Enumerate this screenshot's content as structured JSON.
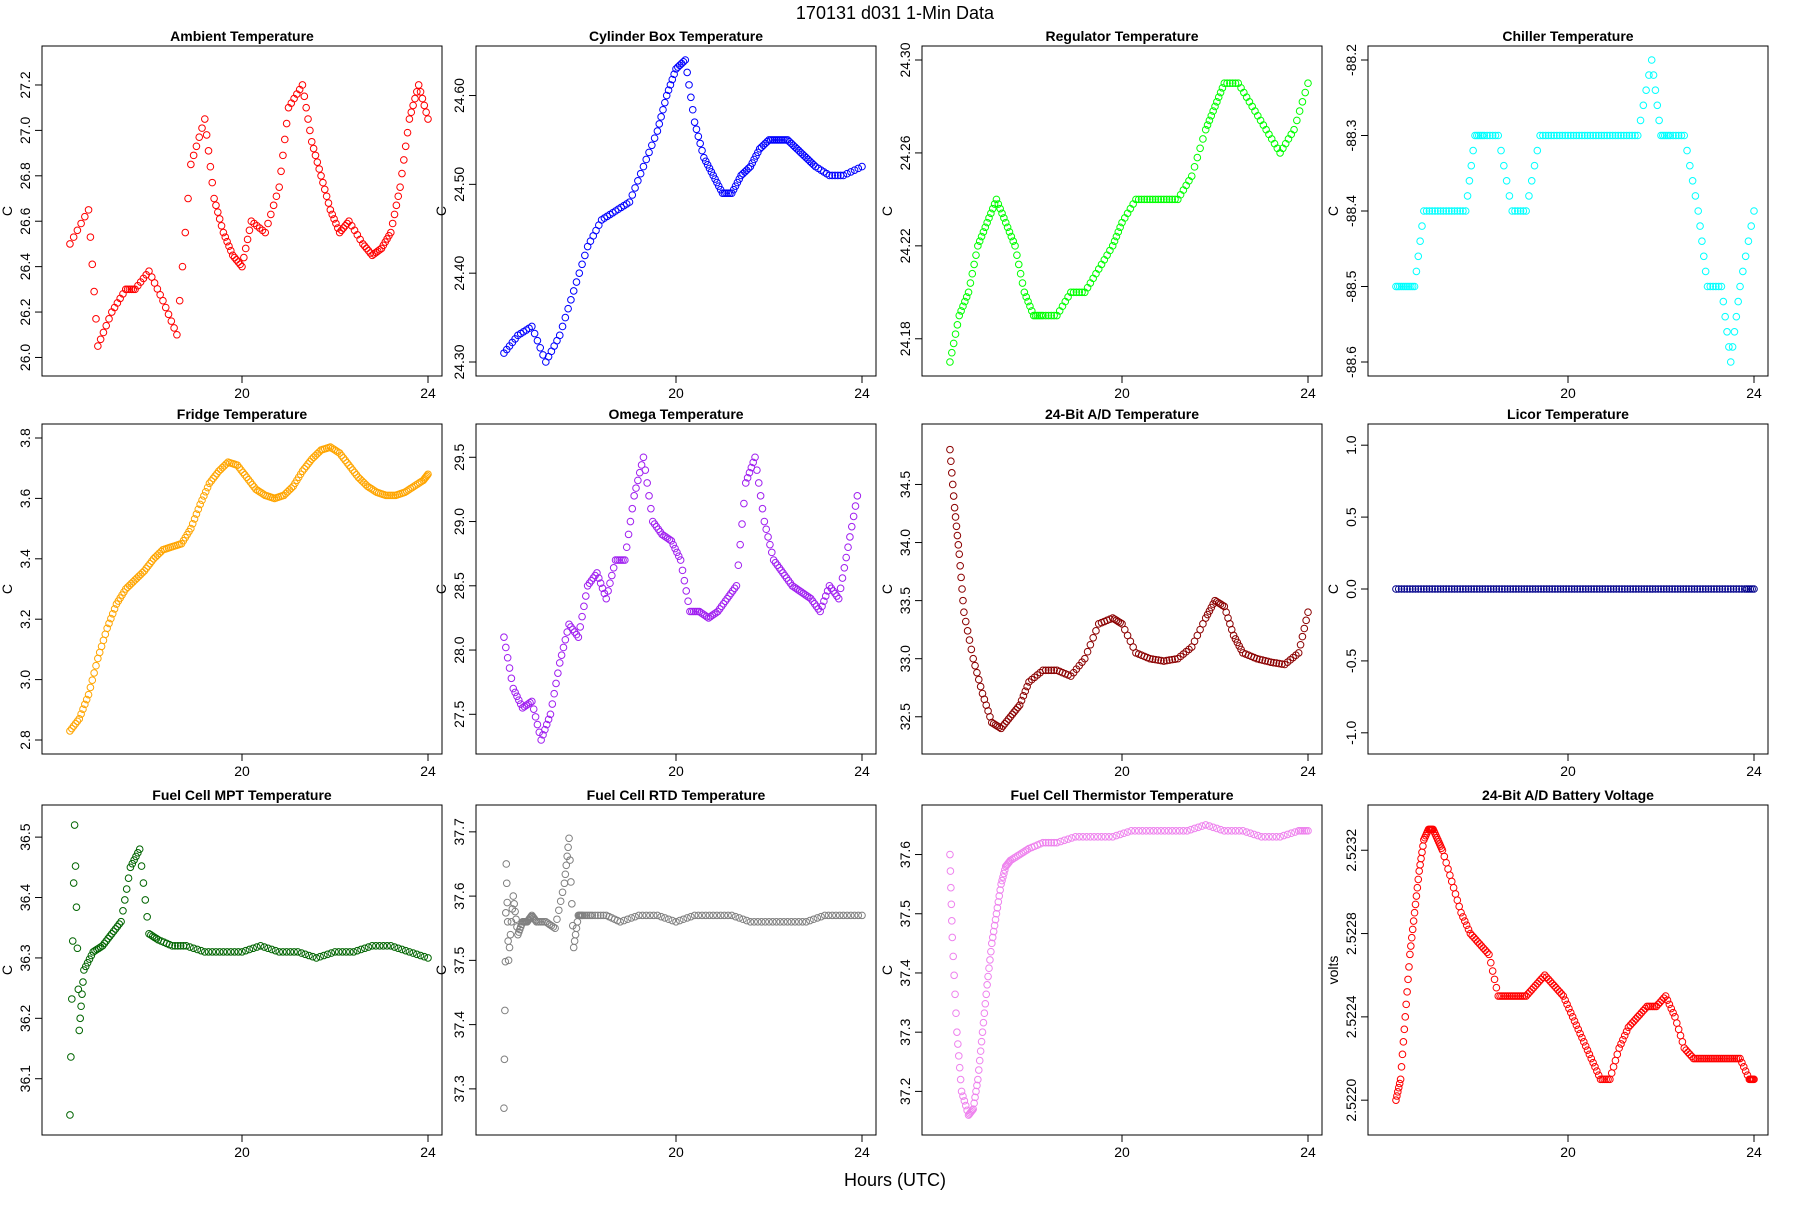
{
  "figure": {
    "title": "170131    d031    1-Min Data",
    "xlabel": "Hours (UTC)"
  },
  "chart_data": [
    {
      "type": "scatter",
      "title": "Ambient Temperature",
      "ylabel": "C",
      "color": "#ff0000",
      "xlim": [
        16,
        24
      ],
      "ylim": [
        25.98,
        27.31
      ],
      "xticks": [
        20,
        24
      ],
      "yticks": [
        26.0,
        26.2,
        26.4,
        26.6,
        26.8,
        27.0,
        27.2
      ],
      "ytick_labels": [
        "26.0",
        "26.2",
        "26.4",
        "26.6",
        "26.8",
        "27.0",
        "27.2"
      ],
      "x": [
        16.3,
        16.7,
        16.9,
        17.2,
        17.5,
        17.7,
        18.0,
        18.3,
        18.6,
        18.9,
        19.2,
        19.4,
        19.6,
        19.8,
        20.0,
        20.2,
        20.5,
        20.8,
        21.0,
        21.3,
        21.5,
        21.7,
        21.9,
        22.1,
        22.3,
        22.6,
        22.8,
        23.0,
        23.2,
        23.4,
        23.6,
        23.8,
        24.0
      ],
      "y": [
        26.5,
        26.65,
        26.05,
        26.2,
        26.3,
        26.3,
        26.38,
        26.25,
        26.1,
        26.85,
        27.05,
        26.7,
        26.55,
        26.45,
        26.4,
        26.6,
        26.55,
        26.75,
        27.1,
        27.2,
        26.95,
        26.8,
        26.65,
        26.55,
        26.6,
        26.5,
        26.45,
        26.48,
        26.55,
        26.75,
        27.05,
        27.2,
        27.05
      ]
    },
    {
      "type": "scatter",
      "title": "Cylinder Box Temperature",
      "ylabel": "C",
      "color": "#0000ff",
      "xlim": [
        16,
        24
      ],
      "ylim": [
        24.3,
        24.64
      ],
      "xticks": [
        20,
        24
      ],
      "yticks": [
        24.3,
        24.4,
        24.5,
        24.6
      ],
      "ytick_labels": [
        "24.30",
        "24.40",
        "24.50",
        "24.60"
      ],
      "x": [
        16.3,
        16.6,
        16.9,
        17.2,
        17.5,
        17.8,
        18.1,
        18.4,
        18.7,
        19.0,
        19.3,
        19.6,
        19.8,
        20.0,
        20.2,
        20.4,
        20.6,
        20.8,
        21.0,
        21.2,
        21.4,
        21.6,
        21.8,
        22.0,
        22.2,
        22.4,
        22.6,
        22.8,
        23.0,
        23.3,
        23.6,
        24.0
      ],
      "y": [
        24.31,
        24.33,
        24.34,
        24.3,
        24.33,
        24.38,
        24.43,
        24.46,
        24.47,
        24.48,
        24.52,
        24.56,
        24.6,
        24.63,
        24.64,
        24.57,
        24.53,
        24.51,
        24.49,
        24.49,
        24.51,
        24.52,
        24.54,
        24.55,
        24.55,
        24.55,
        24.54,
        24.53,
        24.52,
        24.51,
        24.51,
        24.52
      ]
    },
    {
      "type": "scatter",
      "title": "Regulator Temperature",
      "ylabel": "C",
      "color": "#00ff00",
      "xlim": [
        16,
        24
      ],
      "ylim": [
        24.17,
        24.3
      ],
      "xticks": [
        20,
        24
      ],
      "yticks": [
        24.18,
        24.22,
        24.26,
        24.3
      ],
      "ytick_labels": [
        "24.18",
        "24.22",
        "24.26",
        "24.30"
      ],
      "x": [
        16.3,
        16.5,
        16.7,
        16.9,
        17.1,
        17.3,
        17.5,
        17.7,
        17.9,
        18.1,
        18.3,
        18.6,
        18.9,
        19.2,
        19.5,
        19.8,
        20.0,
        20.3,
        20.6,
        20.9,
        21.2,
        21.5,
        21.8,
        22.0,
        22.2,
        22.5,
        22.8,
        23.1,
        23.4,
        23.7,
        24.0
      ],
      "y": [
        24.17,
        24.19,
        24.2,
        24.22,
        24.23,
        24.24,
        24.23,
        24.22,
        24.2,
        24.19,
        24.19,
        24.19,
        24.2,
        24.2,
        24.21,
        24.22,
        24.23,
        24.24,
        24.24,
        24.24,
        24.24,
        24.25,
        24.27,
        24.28,
        24.29,
        24.29,
        24.28,
        24.27,
        24.26,
        24.27,
        24.29
      ]
    },
    {
      "type": "scatter",
      "title": "Chiller Temperature",
      "ylabel": "C",
      "color": "#00ffff",
      "xlim": [
        16,
        24
      ],
      "ylim": [
        -88.6,
        -88.2
      ],
      "xticks": [
        20,
        24
      ],
      "yticks": [
        -88.6,
        -88.5,
        -88.4,
        -88.3,
        -88.2
      ],
      "ytick_labels": [
        "-88.6",
        "-88.5",
        "-88.4",
        "-88.3",
        "-88.2"
      ],
      "x": [
        16.3,
        16.5,
        16.7,
        16.9,
        17.2,
        17.5,
        17.8,
        18.0,
        18.2,
        18.5,
        18.8,
        19.1,
        19.4,
        19.7,
        20.0,
        20.3,
        20.6,
        20.9,
        21.2,
        21.5,
        21.8,
        22.0,
        22.2,
        22.5,
        22.8,
        23.0,
        23.3,
        23.5,
        23.7,
        24.0
      ],
      "y": [
        -88.5,
        -88.5,
        -88.5,
        -88.4,
        -88.4,
        -88.4,
        -88.4,
        -88.3,
        -88.3,
        -88.3,
        -88.4,
        -88.4,
        -88.3,
        -88.3,
        -88.3,
        -88.3,
        -88.3,
        -88.3,
        -88.3,
        -88.3,
        -88.2,
        -88.3,
        -88.3,
        -88.3,
        -88.4,
        -88.5,
        -88.5,
        -88.6,
        -88.5,
        -88.4
      ]
    },
    {
      "type": "scatter",
      "title": "Fridge Temperature",
      "ylabel": "C",
      "color": "#ffa500",
      "xlim": [
        16,
        24
      ],
      "ylim": [
        2.8,
        3.8
      ],
      "xticks": [
        20,
        24
      ],
      "yticks": [
        2.8,
        3.0,
        3.2,
        3.4,
        3.6,
        3.8
      ],
      "ytick_labels": [
        "2.8",
        "3.0",
        "3.2",
        "3.4",
        "3.6",
        "3.8"
      ],
      "x": [
        16.3,
        16.5,
        16.7,
        16.9,
        17.1,
        17.3,
        17.5,
        17.7,
        17.9,
        18.1,
        18.3,
        18.5,
        18.7,
        18.9,
        19.1,
        19.3,
        19.5,
        19.7,
        19.9,
        20.1,
        20.3,
        20.5,
        20.7,
        20.9,
        21.1,
        21.3,
        21.5,
        21.7,
        21.9,
        22.1,
        22.3,
        22.5,
        22.7,
        22.9,
        23.1,
        23.3,
        23.5,
        23.7,
        23.9,
        24.0
      ],
      "y": [
        2.83,
        2.87,
        2.95,
        3.07,
        3.17,
        3.25,
        3.3,
        3.33,
        3.36,
        3.4,
        3.43,
        3.44,
        3.45,
        3.5,
        3.58,
        3.65,
        3.69,
        3.72,
        3.71,
        3.67,
        3.63,
        3.61,
        3.6,
        3.61,
        3.64,
        3.69,
        3.73,
        3.76,
        3.77,
        3.75,
        3.71,
        3.67,
        3.64,
        3.62,
        3.61,
        3.61,
        3.62,
        3.64,
        3.66,
        3.68
      ]
    },
    {
      "type": "scatter",
      "title": "Omega Temperature",
      "ylabel": "C",
      "color": "#a020f0",
      "xlim": [
        16,
        24
      ],
      "ylim": [
        27.3,
        29.65
      ],
      "xticks": [
        20,
        24
      ],
      "yticks": [
        27.5,
        28.0,
        28.5,
        29.0,
        29.5
      ],
      "ytick_labels": [
        "27.5",
        "28.0",
        "28.5",
        "29.0",
        "29.5"
      ],
      "x": [
        16.3,
        16.5,
        16.7,
        16.9,
        17.1,
        17.3,
        17.5,
        17.7,
        17.9,
        18.1,
        18.3,
        18.5,
        18.7,
        18.9,
        19.1,
        19.3,
        19.5,
        19.7,
        19.9,
        20.1,
        20.3,
        20.5,
        20.7,
        20.9,
        21.1,
        21.3,
        21.5,
        21.7,
        21.9,
        22.1,
        22.3,
        22.5,
        22.7,
        22.9,
        23.1,
        23.3,
        23.5,
        23.7,
        23.9
      ],
      "y": [
        28.1,
        27.7,
        27.55,
        27.6,
        27.3,
        27.5,
        27.9,
        28.2,
        28.1,
        28.5,
        28.6,
        28.4,
        28.7,
        28.7,
        29.2,
        29.5,
        29.0,
        28.9,
        28.85,
        28.7,
        28.3,
        28.3,
        28.25,
        28.3,
        28.4,
        28.5,
        29.3,
        29.5,
        29.0,
        28.7,
        28.6,
        28.5,
        28.45,
        28.4,
        28.3,
        28.5,
        28.4,
        28.8,
        29.2
      ]
    },
    {
      "type": "scatter",
      "title": "24-Bit A/D Temperature",
      "ylabel": "C",
      "color": "#8b0000",
      "xlim": [
        16,
        24
      ],
      "ylim": [
        32.3,
        34.9
      ],
      "xticks": [
        20,
        24
      ],
      "yticks": [
        32.5,
        33.0,
        33.5,
        34.0,
        34.5
      ],
      "ytick_labels": [
        "32.5",
        "33.0",
        "33.5",
        "34.0",
        "34.5"
      ],
      "x": [
        16.3,
        16.4,
        16.5,
        16.6,
        16.8,
        17.0,
        17.2,
        17.4,
        17.6,
        17.8,
        18.0,
        18.3,
        18.6,
        18.9,
        19.2,
        19.5,
        19.8,
        20.0,
        20.3,
        20.6,
        20.9,
        21.2,
        21.5,
        21.8,
        22.0,
        22.2,
        22.4,
        22.6,
        22.9,
        23.2,
        23.5,
        23.8,
        24.0
      ],
      "y": [
        34.8,
        34.3,
        33.9,
        33.4,
        33.0,
        32.7,
        32.45,
        32.4,
        32.5,
        32.6,
        32.8,
        32.9,
        32.9,
        32.85,
        33.0,
        33.3,
        33.35,
        33.3,
        33.05,
        33.0,
        32.98,
        33.0,
        33.1,
        33.35,
        33.5,
        33.45,
        33.2,
        33.05,
        33.0,
        32.97,
        32.95,
        33.05,
        33.4
      ]
    },
    {
      "type": "scatter",
      "title": "Licor Temperature",
      "ylabel": "C",
      "color": "#00008b",
      "xlim": [
        16,
        24
      ],
      "ylim": [
        -1.05,
        1.05
      ],
      "xticks": [
        20,
        24
      ],
      "yticks": [
        -1.0,
        -0.5,
        0.0,
        0.5,
        1.0
      ],
      "ytick_labels": [
        "-1.0",
        "-0.5",
        "0.0",
        "0.5",
        "1.0"
      ],
      "x": [
        16.3,
        16.6,
        16.9,
        17.2,
        17.5,
        17.8,
        18.1,
        18.4,
        18.7,
        19.0,
        19.3,
        19.6,
        19.9,
        20.2,
        20.5,
        20.8,
        21.1,
        21.4,
        21.7,
        22.0,
        22.3,
        22.6,
        22.9,
        23.2,
        23.5,
        23.8,
        24.0
      ],
      "y": [
        0,
        0,
        0,
        0,
        0,
        0,
        0,
        0,
        0,
        0,
        0,
        0,
        0,
        0,
        0,
        0,
        0,
        0,
        0,
        0,
        0,
        0,
        0,
        0,
        0,
        0,
        0
      ]
    },
    {
      "type": "scatter",
      "title": "Fuel Cell MPT Temperature",
      "ylabel": "C",
      "color": "#006400",
      "xlim": [
        16,
        24
      ],
      "ylim": [
        36.03,
        36.53
      ],
      "xticks": [
        20,
        24
      ],
      "yticks": [
        36.1,
        36.2,
        36.3,
        36.4,
        36.5
      ],
      "ytick_labels": [
        "36.1",
        "36.2",
        "36.3",
        "36.4",
        "36.5"
      ],
      "x": [
        16.3,
        16.4,
        16.5,
        16.6,
        16.8,
        17.0,
        17.2,
        17.4,
        17.6,
        17.8,
        18.0,
        18.2,
        18.5,
        18.8,
        19.2,
        19.6,
        20.0,
        20.4,
        20.8,
        21.2,
        21.6,
        22.0,
        22.4,
        22.8,
        23.2,
        23.6,
        24.0
      ],
      "y": [
        36.04,
        36.52,
        36.18,
        36.28,
        36.31,
        36.32,
        36.34,
        36.36,
        36.45,
        36.48,
        36.34,
        36.33,
        36.32,
        36.32,
        36.31,
        36.31,
        36.31,
        36.32,
        36.31,
        36.31,
        36.3,
        36.31,
        36.31,
        36.32,
        36.32,
        36.31,
        36.3
      ]
    },
    {
      "type": "scatter",
      "title": "Fuel Cell RTD Temperature",
      "ylabel": "C",
      "color": "#808080",
      "xlim": [
        16,
        24
      ],
      "ylim": [
        37.25,
        37.72
      ],
      "xticks": [
        20,
        24
      ],
      "yticks": [
        37.3,
        37.4,
        37.5,
        37.6,
        37.7
      ],
      "ytick_labels": [
        "37.3",
        "37.4",
        "37.5",
        "37.6",
        "37.7"
      ],
      "x": [
        16.3,
        16.35,
        16.4,
        16.5,
        16.6,
        16.7,
        16.8,
        16.9,
        17.0,
        17.2,
        17.4,
        17.6,
        17.7,
        17.8,
        17.9,
        18.0,
        18.2,
        18.5,
        18.8,
        19.2,
        19.6,
        20.0,
        20.4,
        20.8,
        21.2,
        21.6,
        22.0,
        22.4,
        22.8,
        23.2,
        23.6,
        24.0
      ],
      "y": [
        37.27,
        37.65,
        37.5,
        37.6,
        37.54,
        37.56,
        37.56,
        37.57,
        37.56,
        37.56,
        37.55,
        37.62,
        37.69,
        37.52,
        37.57,
        37.57,
        37.57,
        37.57,
        37.56,
        37.57,
        37.57,
        37.56,
        37.57,
        37.57,
        37.57,
        37.56,
        37.56,
        37.56,
        37.56,
        37.57,
        37.57,
        37.57
      ]
    },
    {
      "type": "scatter",
      "title": "Fuel Cell Thermistor Temperature",
      "ylabel": "C",
      "color": "#ee82ee",
      "xlim": [
        16,
        24
      ],
      "ylim": [
        37.15,
        37.66
      ],
      "xticks": [
        20,
        24
      ],
      "yticks": [
        37.2,
        37.3,
        37.4,
        37.5,
        37.6
      ],
      "ytick_labels": [
        "37.2",
        "37.3",
        "37.4",
        "37.5",
        "37.6"
      ],
      "x": [
        16.3,
        16.35,
        16.45,
        16.55,
        16.7,
        16.8,
        16.9,
        17.0,
        17.1,
        17.2,
        17.3,
        17.4,
        17.5,
        17.6,
        17.8,
        18.0,
        18.3,
        18.6,
        19.0,
        19.4,
        19.8,
        20.2,
        20.6,
        21.0,
        21.4,
        21.8,
        22.2,
        22.6,
        23.0,
        23.4,
        23.8,
        24.0
      ],
      "y": [
        37.6,
        37.46,
        37.3,
        37.2,
        37.16,
        37.17,
        37.22,
        37.3,
        37.38,
        37.45,
        37.5,
        37.55,
        37.58,
        37.59,
        37.6,
        37.61,
        37.62,
        37.62,
        37.63,
        37.63,
        37.63,
        37.64,
        37.64,
        37.64,
        37.64,
        37.65,
        37.64,
        37.64,
        37.63,
        37.63,
        37.64,
        37.64
      ]
    },
    {
      "type": "scatter",
      "title": "24-Bit A/D Battery Voltage",
      "ylabel": "volts",
      "color": "#ff0000",
      "xlim": [
        16,
        24
      ],
      "ylim": [
        2.5219,
        2.52335
      ],
      "xticks": [
        20,
        24
      ],
      "yticks": [
        2.522,
        2.5224,
        2.5228,
        2.5232
      ],
      "ytick_labels": [
        "2.5220",
        "2.5224",
        "2.5228",
        "2.5232"
      ],
      "x": [
        16.3,
        16.4,
        16.5,
        16.6,
        16.7,
        16.8,
        16.9,
        17.0,
        17.1,
        17.2,
        17.3,
        17.5,
        17.7,
        17.9,
        18.1,
        18.3,
        18.5,
        18.7,
        18.9,
        19.1,
        19.3,
        19.5,
        19.7,
        19.9,
        20.1,
        20.3,
        20.5,
        20.7,
        20.9,
        21.1,
        21.3,
        21.5,
        21.7,
        21.9,
        22.1,
        22.3,
        22.5,
        22.7,
        22.9,
        23.1,
        23.3,
        23.5,
        23.7,
        23.9,
        24.0
      ],
      "y": [
        2.522,
        2.5221,
        2.5224,
        2.5227,
        2.5229,
        2.5231,
        2.52325,
        2.5233,
        2.5233,
        2.52325,
        2.5232,
        2.52305,
        2.5229,
        2.5228,
        2.52275,
        2.5227,
        2.5225,
        2.5225,
        2.5225,
        2.5225,
        2.52255,
        2.5226,
        2.52255,
        2.5225,
        2.5224,
        2.5223,
        2.5222,
        2.5221,
        2.5221,
        2.52225,
        2.52235,
        2.5224,
        2.52245,
        2.52245,
        2.5225,
        2.5224,
        2.52225,
        2.5222,
        2.5222,
        2.5222,
        2.5222,
        2.5222,
        2.5222,
        2.5221,
        2.5221
      ]
    }
  ]
}
